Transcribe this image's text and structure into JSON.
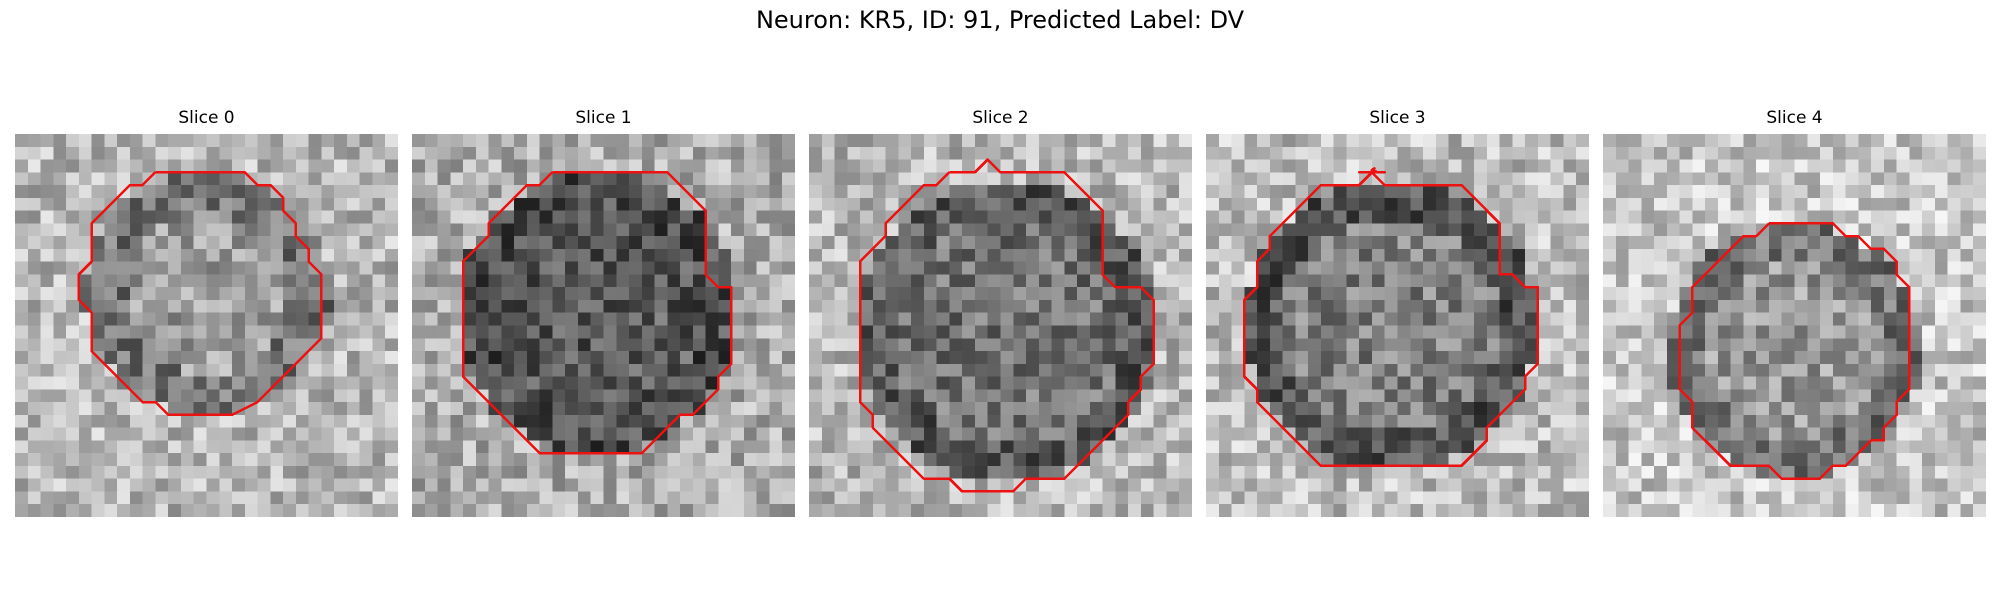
{
  "figure": {
    "title": "Neuron: KR5, ID: 91, Predicted Label: DV",
    "contour_color": "#ee1111",
    "colormap": "grayscale"
  },
  "panels": [
    {
      "title": "Slice 0"
    },
    {
      "title": "Slice 1"
    },
    {
      "title": "Slice 2"
    },
    {
      "title": "Slice 3"
    },
    {
      "title": "Slice 4"
    }
  ]
}
